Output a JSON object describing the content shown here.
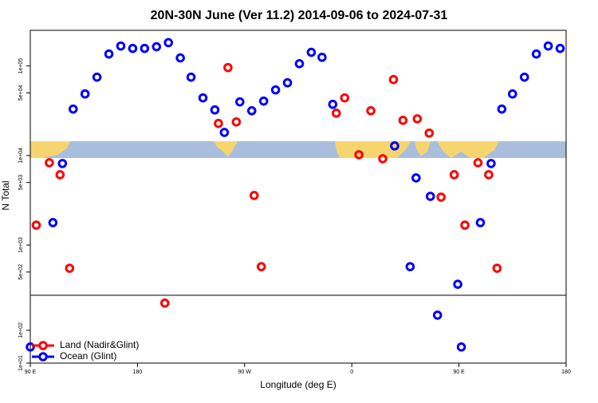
{
  "chart_data": [
    {
      "type": "scatter",
      "title": "20N-30N June (Ver 11.2)   2014-09-06 to 2024-07-31",
      "y_label": "N Total",
      "y_scale": "log",
      "xlim": [
        90,
        540
      ],
      "ylim": [
        275,
        250000
      ],
      "yticks": [
        {
          "value": 500,
          "label": "5e+02"
        },
        {
          "value": 1000,
          "label": "1e+03"
        },
        {
          "value": 5000,
          "label": "5e+03"
        },
        {
          "value": 10000,
          "label": "1e+04"
        },
        {
          "value": 50000,
          "label": "5e+04"
        },
        {
          "value": 100000,
          "label": "1e+05"
        }
      ],
      "series": [
        {
          "color": "#ff0000",
          "x": [
            95,
            106,
            115,
            123,
            248,
            256,
            263,
            278,
            284,
            347,
            354,
            366,
            376,
            386,
            395,
            403,
            415,
            425,
            435,
            446,
            455,
            466,
            475,
            482
          ],
          "values": [
            1670,
            8300,
            6100,
            551,
            22800,
            96000,
            23700,
            3580,
            574,
            29700,
            44000,
            10200,
            31600,
            9200,
            70500,
            24700,
            25700,
            17800,
            3430,
            6100,
            1670,
            8300,
            6100,
            551
          ]
        },
        {
          "color": "#0000ff",
          "x": [
            109,
            117,
            126,
            136,
            146,
            156,
            166,
            176,
            186,
            196,
            206,
            216,
            225,
            235,
            245,
            253,
            266,
            276,
            286,
            296,
            306,
            316,
            326,
            335,
            344,
            396,
            409,
            414,
            426,
            449,
            468,
            477,
            486,
            495,
            505,
            515,
            525,
            535
          ],
          "values": [
            1780,
            8140,
            33000,
            48700,
            75000,
            136000,
            167000,
            157000,
            157000,
            164000,
            182000,
            123000,
            75000,
            44000,
            32300,
            18100,
            39700,
            31600,
            40500,
            54000,
            64900,
            106000,
            142000,
            125000,
            37300,
            12800,
            574,
            5620,
            3500,
            365,
            1780,
            8140,
            33000,
            48700,
            75000,
            136000,
            167000,
            157000
          ]
        }
      ]
    },
    {
      "type": "scatter",
      "x_label": "Longitude (deg E)",
      "y_scale": "log",
      "legend": "lower left",
      "xlim": [
        90,
        540
      ],
      "ylim": [
        10,
        1170
      ],
      "xticks": [
        {
          "value": 90,
          "label": "90 E"
        },
        {
          "value": 180,
          "label": "180"
        },
        {
          "value": 270,
          "label": "90 W"
        },
        {
          "value": 360,
          "label": "0"
        },
        {
          "value": 450,
          "label": "90 E"
        },
        {
          "value": 540,
          "label": "180"
        }
      ],
      "yticks": [
        {
          "value": 10,
          "label": "1e+01"
        },
        {
          "value": 100,
          "label": "1e+02"
        }
      ],
      "series": [
        {
          "name": "Land (Nadir&Glint)",
          "color": "#ff0000",
          "x": [
            203
          ],
          "values": [
            676
          ]
        },
        {
          "name": "Ocean (Glint)",
          "color": "#0000ff",
          "x": [
            90,
            432,
            452
          ],
          "values": [
            31,
            290,
            31
          ]
        }
      ]
    }
  ]
}
